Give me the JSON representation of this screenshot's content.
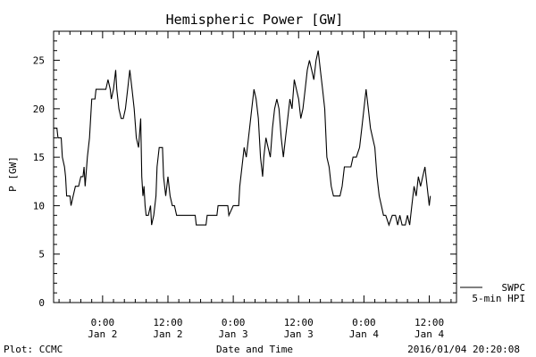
{
  "footer": {
    "plot_credit": "Plot: CCMC",
    "timestamp": "2016/01/04 20:20:08"
  },
  "legend": {
    "line1": "SWPC",
    "line2": "5-min HPI"
  },
  "chart_data": {
    "type": "line",
    "title": "Hemispheric Power [GW]",
    "xlabel": "Date and Time",
    "ylabel": "P [GW]",
    "xlim": [
      -4.5,
      32.5
    ],
    "ylim": [
      0,
      28
    ],
    "yticks": [
      0,
      5,
      10,
      15,
      20,
      25
    ],
    "yminor_step": 1,
    "xticks": [
      {
        "x": 0,
        "line1": "0:00",
        "line2": "Jan 2"
      },
      {
        "x": 6,
        "line1": "12:00",
        "line2": "Jan 2"
      },
      {
        "x": 12,
        "line1": "0:00",
        "line2": "Jan 3"
      },
      {
        "x": 18,
        "line1": "12:00",
        "line2": "Jan 3"
      },
      {
        "x": 24,
        "line1": "0:00",
        "line2": "Jan 4"
      },
      {
        "x": 30,
        "line1": "12:00",
        "line2": "Jan 4"
      }
    ],
    "xminor_step": 1,
    "x_units": "hours since Jan 2 0:00, divided by 2",
    "grid": false,
    "legend_position": "bottom-right outside plot",
    "series": [
      {
        "name": "SWPC 5-min HPI",
        "color": "#000000",
        "points": [
          [
            -4.5,
            18
          ],
          [
            -4.2,
            18
          ],
          [
            -4.1,
            17
          ],
          [
            -3.8,
            17
          ],
          [
            -3.7,
            15
          ],
          [
            -3.5,
            14
          ],
          [
            -3.4,
            13
          ],
          [
            -3.3,
            11
          ],
          [
            -3.0,
            11
          ],
          [
            -2.9,
            10
          ],
          [
            -2.7,
            11
          ],
          [
            -2.5,
            12
          ],
          [
            -2.2,
            12
          ],
          [
            -2.0,
            13
          ],
          [
            -1.8,
            13
          ],
          [
            -1.7,
            14
          ],
          [
            -1.6,
            12
          ],
          [
            -1.4,
            15
          ],
          [
            -1.2,
            17
          ],
          [
            -1.0,
            21
          ],
          [
            -0.7,
            21
          ],
          [
            -0.6,
            22
          ],
          [
            -0.3,
            22
          ],
          [
            0.0,
            22
          ],
          [
            0.3,
            22
          ],
          [
            0.5,
            23
          ],
          [
            0.7,
            22
          ],
          [
            0.8,
            21
          ],
          [
            1.0,
            22
          ],
          [
            1.2,
            24
          ],
          [
            1.3,
            22
          ],
          [
            1.5,
            20
          ],
          [
            1.7,
            19
          ],
          [
            1.9,
            19
          ],
          [
            2.1,
            20
          ],
          [
            2.3,
            22
          ],
          [
            2.5,
            24
          ],
          [
            2.7,
            22
          ],
          [
            2.9,
            20
          ],
          [
            3.1,
            17
          ],
          [
            3.3,
            16
          ],
          [
            3.5,
            19
          ],
          [
            3.6,
            13
          ],
          [
            3.7,
            11
          ],
          [
            3.8,
            12
          ],
          [
            3.9,
            10
          ],
          [
            4.0,
            9
          ],
          [
            4.2,
            9
          ],
          [
            4.4,
            10
          ],
          [
            4.5,
            8
          ],
          [
            4.7,
            9
          ],
          [
            4.9,
            11
          ],
          [
            5.0,
            14
          ],
          [
            5.2,
            16
          ],
          [
            5.5,
            16
          ],
          [
            5.6,
            13
          ],
          [
            5.8,
            11
          ],
          [
            6.0,
            13
          ],
          [
            6.2,
            11
          ],
          [
            6.4,
            10
          ],
          [
            6.6,
            10
          ],
          [
            6.8,
            9
          ],
          [
            7.0,
            9
          ],
          [
            7.5,
            9
          ],
          [
            8.0,
            9
          ],
          [
            8.5,
            9
          ],
          [
            8.6,
            8
          ],
          [
            9.0,
            8
          ],
          [
            9.5,
            8
          ],
          [
            9.6,
            9
          ],
          [
            10.0,
            9
          ],
          [
            10.5,
            9
          ],
          [
            10.6,
            10
          ],
          [
            11.0,
            10
          ],
          [
            11.5,
            10
          ],
          [
            11.6,
            9
          ],
          [
            12.0,
            10
          ],
          [
            12.5,
            10
          ],
          [
            12.6,
            12
          ],
          [
            12.9,
            15
          ],
          [
            13.0,
            16
          ],
          [
            13.2,
            15
          ],
          [
            13.5,
            18
          ],
          [
            13.7,
            20
          ],
          [
            13.9,
            22
          ],
          [
            14.1,
            21
          ],
          [
            14.3,
            19
          ],
          [
            14.5,
            15
          ],
          [
            14.7,
            13
          ],
          [
            14.8,
            15
          ],
          [
            15.0,
            17
          ],
          [
            15.2,
            16
          ],
          [
            15.4,
            15
          ],
          [
            15.6,
            18
          ],
          [
            15.8,
            20
          ],
          [
            16.0,
            21
          ],
          [
            16.2,
            20
          ],
          [
            16.4,
            17
          ],
          [
            16.6,
            15
          ],
          [
            16.8,
            17
          ],
          [
            17.0,
            19
          ],
          [
            17.2,
            21
          ],
          [
            17.4,
            20
          ],
          [
            17.6,
            23
          ],
          [
            17.8,
            22
          ],
          [
            18.0,
            21
          ],
          [
            18.2,
            19
          ],
          [
            18.4,
            20
          ],
          [
            18.6,
            22
          ],
          [
            18.8,
            24
          ],
          [
            19.0,
            25
          ],
          [
            19.2,
            24
          ],
          [
            19.4,
            23
          ],
          [
            19.6,
            25
          ],
          [
            19.8,
            26
          ],
          [
            20.0,
            24
          ],
          [
            20.2,
            22
          ],
          [
            20.4,
            20
          ],
          [
            20.6,
            15
          ],
          [
            20.8,
            14
          ],
          [
            21.0,
            12
          ],
          [
            21.2,
            11
          ],
          [
            21.5,
            11
          ],
          [
            21.8,
            11
          ],
          [
            22.0,
            12
          ],
          [
            22.2,
            14
          ],
          [
            22.5,
            14
          ],
          [
            22.8,
            14
          ],
          [
            23.0,
            15
          ],
          [
            23.3,
            15
          ],
          [
            23.6,
            16
          ],
          [
            23.8,
            18
          ],
          [
            24.0,
            20
          ],
          [
            24.2,
            22
          ],
          [
            24.4,
            20
          ],
          [
            24.6,
            18
          ],
          [
            24.8,
            17
          ],
          [
            25.0,
            16
          ],
          [
            25.2,
            13
          ],
          [
            25.4,
            11
          ],
          [
            25.6,
            10
          ],
          [
            25.8,
            9
          ],
          [
            26.0,
            9
          ],
          [
            26.3,
            8
          ],
          [
            26.6,
            9
          ],
          [
            26.9,
            9
          ],
          [
            27.1,
            8
          ],
          [
            27.3,
            9
          ],
          [
            27.5,
            8
          ],
          [
            27.8,
            8
          ],
          [
            28.0,
            9
          ],
          [
            28.2,
            8
          ],
          [
            28.4,
            10
          ],
          [
            28.6,
            12
          ],
          [
            28.8,
            11
          ],
          [
            29.0,
            13
          ],
          [
            29.2,
            12
          ],
          [
            29.4,
            13
          ],
          [
            29.6,
            14
          ],
          [
            29.8,
            12
          ],
          [
            30.0,
            10
          ],
          [
            30.1,
            11
          ]
        ]
      }
    ]
  }
}
